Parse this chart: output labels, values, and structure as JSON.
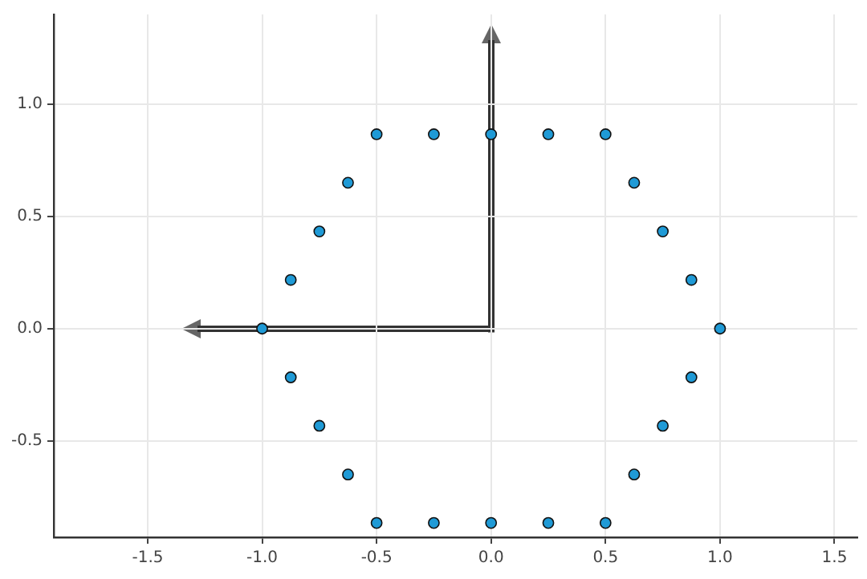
{
  "chart_data": {
    "type": "scatter",
    "xlim": [
      -1.91,
      1.6
    ],
    "ylim": [
      -0.93,
      1.4
    ],
    "xticks": [
      {
        "value": -1.5,
        "label": "-1.5"
      },
      {
        "value": -1,
        "label": "-1.0"
      },
      {
        "value": -0.5,
        "label": "-0.5"
      },
      {
        "value": 0,
        "label": "0.0"
      },
      {
        "value": 0.5,
        "label": "0.5"
      },
      {
        "value": 1,
        "label": "1.0"
      },
      {
        "value": 1.5,
        "label": "1.5"
      }
    ],
    "yticks": [
      {
        "value": -0.5,
        "label": "-0.5"
      },
      {
        "value": 0,
        "label": "0.0"
      },
      {
        "value": 0.5,
        "label": "0.5"
      },
      {
        "value": 1,
        "label": "1.0"
      }
    ],
    "grid": true,
    "legend": false,
    "marker": "circle",
    "series": [
      {
        "color": "#1f9ad6",
        "x": [
          1,
          0.875,
          0.75,
          0.625,
          0.5,
          0.25,
          0,
          -0.25,
          -0.5,
          -0.625,
          -0.75,
          -0.875,
          -1,
          -0.875,
          -0.75,
          -0.625,
          -0.5,
          -0.25,
          0,
          0.25,
          0.5,
          0.625,
          0.75,
          0.875
        ],
        "values": [
          0,
          0.217,
          0.433,
          0.65,
          0.866,
          0.866,
          0.866,
          0.866,
          0.866,
          0.65,
          0.433,
          0.217,
          0,
          -0.217,
          -0.433,
          -0.65,
          -0.866,
          -0.866,
          -0.866,
          -0.866,
          -0.866,
          -0.65,
          -0.433,
          -0.217
        ]
      }
    ]
  }
}
